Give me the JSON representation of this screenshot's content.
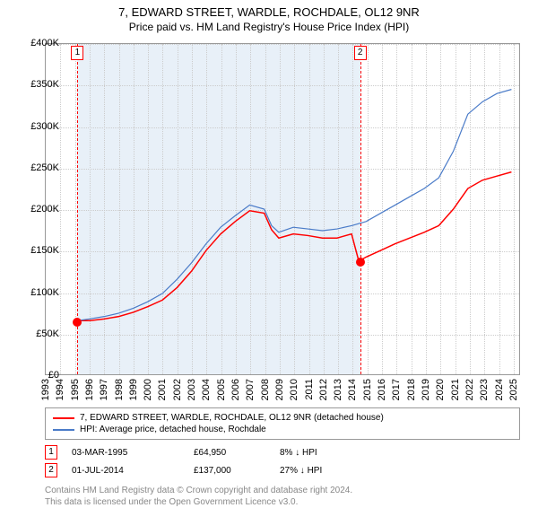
{
  "title": "7, EDWARD STREET, WARDLE, ROCHDALE, OL12 9NR",
  "subtitle": "Price paid vs. HM Land Registry's House Price Index (HPI)",
  "chart": {
    "type": "line",
    "background_color": "#ffffff",
    "grid_color": "#cccccc",
    "border_color": "#999999",
    "y": {
      "min": 0,
      "max": 400000,
      "step": 50000,
      "labels": [
        "£0",
        "£50K",
        "£100K",
        "£150K",
        "£200K",
        "£250K",
        "£300K",
        "£350K",
        "£400K"
      ],
      "label_fontsize": 11
    },
    "x": {
      "min": 1993,
      "max": 2025.5,
      "step": 1,
      "labels": [
        "1993",
        "1994",
        "1995",
        "1996",
        "1997",
        "1998",
        "1999",
        "2000",
        "2001",
        "2002",
        "2003",
        "2004",
        "2005",
        "2006",
        "2007",
        "2008",
        "2009",
        "2010",
        "2011",
        "2012",
        "2013",
        "2014",
        "2015",
        "2016",
        "2017",
        "2018",
        "2019",
        "2020",
        "2021",
        "2022",
        "2023",
        "2024",
        "2025"
      ],
      "label_fontsize": 11
    },
    "highlight_band": {
      "start": 1995.17,
      "end": 2014.5,
      "color": "#e8f0f8"
    },
    "series": [
      {
        "id": "property",
        "label": "7, EDWARD STREET, WARDLE, ROCHDALE, OL12 9NR (detached house)",
        "color": "#ff0000",
        "line_width": 1.5,
        "x": [
          1995.17,
          1996,
          1997,
          1998,
          1999,
          2000,
          2001,
          2002,
          2003,
          2004,
          2005,
          2006,
          2007,
          2008,
          2008.5,
          2009,
          2010,
          2011,
          2012,
          2013,
          2014,
          2014.5,
          2015,
          2016,
          2017,
          2018,
          2019,
          2020,
          2021,
          2022,
          2023,
          2024,
          2025
        ],
        "y": [
          64950,
          65000,
          67000,
          70000,
          75000,
          82000,
          90000,
          105000,
          125000,
          150000,
          170000,
          185000,
          198000,
          195000,
          175000,
          165000,
          170000,
          168000,
          165000,
          165000,
          170000,
          137000,
          142000,
          150000,
          158000,
          165000,
          172000,
          180000,
          200000,
          225000,
          235000,
          240000,
          245000
        ]
      },
      {
        "id": "hpi",
        "label": "HPI: Average price, detached house, Rochdale",
        "color": "#4a7bc8",
        "line_width": 1.2,
        "x": [
          1995.17,
          1996,
          1997,
          1998,
          1999,
          2000,
          2001,
          2002,
          2003,
          2004,
          2005,
          2006,
          2007,
          2008,
          2008.5,
          2009,
          2010,
          2011,
          2012,
          2013,
          2014,
          2015,
          2016,
          2017,
          2018,
          2019,
          2020,
          2021,
          2022,
          2023,
          2024,
          2025
        ],
        "y": [
          64950,
          67000,
          70000,
          74000,
          80000,
          88000,
          98000,
          115000,
          135000,
          158000,
          178000,
          192000,
          205000,
          200000,
          180000,
          172000,
          178000,
          176000,
          174000,
          176000,
          180000,
          185000,
          195000,
          205000,
          215000,
          225000,
          238000,
          270000,
          315000,
          330000,
          340000,
          345000
        ]
      }
    ],
    "sale_markers": [
      {
        "num": "1",
        "x": 1995.17,
        "date": "03-MAR-1995",
        "price": "£64,950",
        "hpi_delta": "8% ↓ HPI",
        "dot_y": 64950
      },
      {
        "num": "2",
        "x": 2014.5,
        "date": "01-JUL-2014",
        "price": "£137,000",
        "hpi_delta": "27% ↓ HPI",
        "dot_y": 137000
      }
    ]
  },
  "attribution": {
    "line1": "Contains HM Land Registry data © Crown copyright and database right 2024.",
    "line2": "This data is licensed under the Open Government Licence v3.0."
  }
}
